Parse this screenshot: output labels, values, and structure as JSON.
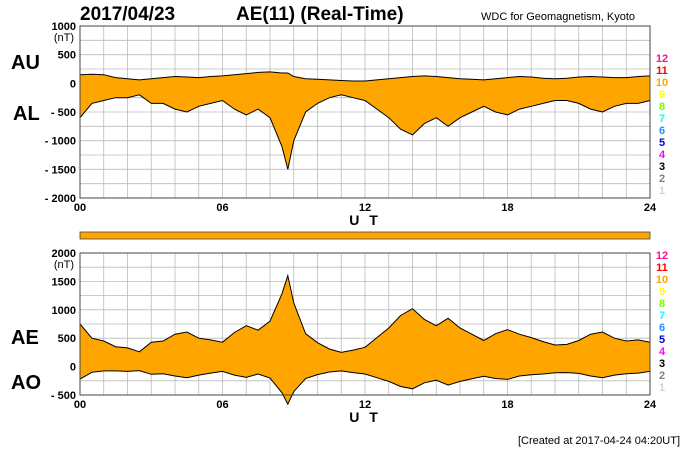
{
  "header": {
    "date": "2017/04/23",
    "title": "AE(11) (Real-Time)",
    "source": "WDC for Geomagnetism, Kyoto"
  },
  "footer": {
    "created": "[Created at 2017-04-24 04:20UT]"
  },
  "colors": {
    "fill": "#FFA500",
    "outline": "#000000",
    "grid": "#bbbbbb"
  },
  "legend_station_counts": [
    {
      "label": "12",
      "color": "#FF1493"
    },
    {
      "label": "11",
      "color": "#FF0000"
    },
    {
      "label": "10",
      "color": "#FFA500"
    },
    {
      "label": "9",
      "color": "#FFFF00"
    },
    {
      "label": "8",
      "color": "#7CFC00"
    },
    {
      "label": "7",
      "color": "#00FFFF"
    },
    {
      "label": "6",
      "color": "#1E90FF"
    },
    {
      "label": "5",
      "color": "#0000CD"
    },
    {
      "label": "4",
      "color": "#FF00FF"
    },
    {
      "label": "3",
      "color": "#000000"
    },
    {
      "label": "2",
      "color": "#808080"
    },
    {
      "label": "1",
      "color": "#D3D3D3"
    }
  ],
  "chart_data": [
    {
      "type": "area",
      "name": "AU/AL",
      "series_labels": [
        "AU",
        "AL"
      ],
      "ylabel": "(nT)",
      "xlabel": "U T",
      "ylim": [
        -2000,
        1000
      ],
      "yticks": [
        "1000",
        "500",
        "0",
        "- 500",
        "- 1000",
        "- 1500",
        "- 2000"
      ],
      "ytick_values": [
        1000,
        500,
        0,
        -500,
        -1000,
        -1500,
        -2000
      ],
      "xlim": [
        0,
        24
      ],
      "xticks": [
        "00",
        "06",
        "12",
        "18",
        "24"
      ],
      "xtick_values": [
        0,
        6,
        12,
        18,
        24
      ],
      "grid": true,
      "x_hours": [
        0,
        0.5,
        1,
        1.5,
        2,
        2.5,
        3,
        3.5,
        4,
        4.5,
        5,
        5.5,
        6,
        6.5,
        7,
        7.5,
        8,
        8.5,
        8.75,
        9,
        9.5,
        10,
        10.5,
        11,
        11.5,
        12,
        12.5,
        13,
        13.5,
        14,
        14.5,
        15,
        15.5,
        16,
        16.5,
        17,
        17.5,
        18,
        18.5,
        19,
        19.5,
        20,
        20.5,
        21,
        21.5,
        22,
        22.5,
        23,
        23.5,
        24
      ],
      "upper": [
        150,
        160,
        150,
        100,
        80,
        60,
        80,
        100,
        120,
        110,
        100,
        120,
        130,
        150,
        170,
        190,
        200,
        180,
        180,
        120,
        80,
        70,
        60,
        50,
        40,
        40,
        60,
        80,
        100,
        120,
        130,
        120,
        100,
        80,
        70,
        60,
        80,
        100,
        120,
        110,
        90,
        80,
        90,
        110,
        120,
        110,
        100,
        100,
        120,
        130
      ],
      "lower": [
        -600,
        -350,
        -300,
        -250,
        -250,
        -200,
        -350,
        -350,
        -450,
        -500,
        -400,
        -350,
        -300,
        -450,
        -550,
        -450,
        -600,
        -1100,
        -1500,
        -1000,
        -500,
        -350,
        -250,
        -200,
        -250,
        -300,
        -450,
        -600,
        -800,
        -900,
        -700,
        -600,
        -750,
        -600,
        -500,
        -400,
        -500,
        -550,
        -450,
        -400,
        -350,
        -300,
        -300,
        -350,
        -450,
        -500,
        -400,
        -350,
        -350,
        -300
      ]
    },
    {
      "type": "area",
      "name": "AE/AO",
      "series_labels": [
        "AE",
        "AO"
      ],
      "ylabel": "(nT)",
      "xlabel": "U T",
      "ylim": [
        -500,
        2000
      ],
      "yticks": [
        "2000",
        "1500",
        "1000",
        "500",
        "0",
        "- 500"
      ],
      "ytick_values": [
        2000,
        1500,
        1000,
        500,
        0,
        -500
      ],
      "xlim": [
        0,
        24
      ],
      "xticks": [
        "00",
        "06",
        "12",
        "18",
        "24"
      ],
      "xtick_values": [
        0,
        6,
        12,
        18,
        24
      ],
      "grid": true,
      "x_hours": [
        0,
        0.5,
        1,
        1.5,
        2,
        2.5,
        3,
        3.5,
        4,
        4.5,
        5,
        5.5,
        6,
        6.5,
        7,
        7.5,
        8,
        8.5,
        8.75,
        9,
        9.5,
        10,
        10.5,
        11,
        11.5,
        12,
        12.5,
        13,
        13.5,
        14,
        14.5,
        15,
        15.5,
        16,
        16.5,
        17,
        17.5,
        18,
        18.5,
        19,
        19.5,
        20,
        20.5,
        21,
        21.5,
        22,
        22.5,
        23,
        23.5,
        24
      ],
      "upper": [
        750,
        500,
        450,
        350,
        330,
        260,
        430,
        450,
        570,
        610,
        500,
        470,
        430,
        600,
        720,
        640,
        800,
        1280,
        1600,
        1120,
        580,
        420,
        310,
        250,
        290,
        340,
        510,
        680,
        900,
        1020,
        830,
        720,
        850,
        680,
        570,
        460,
        580,
        650,
        570,
        510,
        440,
        380,
        390,
        460,
        570,
        610,
        500,
        450,
        470,
        430
      ],
      "lower": [
        -220,
        -100,
        -75,
        -75,
        -85,
        -70,
        -135,
        -125,
        -165,
        -195,
        -150,
        -115,
        -85,
        -150,
        -190,
        -130,
        -200,
        -460,
        -660,
        -440,
        -210,
        -140,
        -95,
        -75,
        -105,
        -130,
        -195,
        -260,
        -350,
        -390,
        -285,
        -240,
        -325,
        -260,
        -215,
        -170,
        -210,
        -225,
        -165,
        -145,
        -130,
        -110,
        -105,
        -120,
        -165,
        -195,
        -150,
        -125,
        -115,
        -85
      ]
    }
  ]
}
